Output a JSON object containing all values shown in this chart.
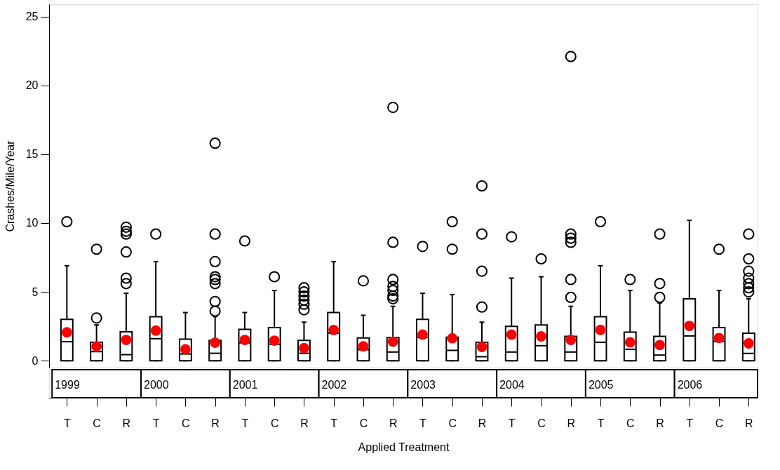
{
  "chart_data": {
    "type": "box",
    "ylabel": "Crashes/Mile/Year",
    "xlabel": "Applied Treatment",
    "categories": [
      "T",
      "C",
      "R",
      "T",
      "C",
      "R",
      "T",
      "C",
      "R",
      "T",
      "C",
      "R",
      "T",
      "C",
      "R",
      "T",
      "C",
      "R",
      "T",
      "C",
      "R",
      "T",
      "C",
      "R"
    ],
    "annotations": [
      "1999",
      "2000",
      "2001",
      "2002",
      "2003",
      "2004",
      "2005",
      "2006"
    ],
    "ylim": [
      -0.5,
      25.9
    ],
    "yticks": [
      0,
      5,
      10,
      15,
      20,
      25
    ],
    "grid": false,
    "series": [
      {
        "color": "#000000",
        "boxes": [
          {
            "low": 0,
            "q1": 0,
            "median": 1.38,
            "q3": 3.0,
            "high": 6.9,
            "mean": 2.06,
            "outliers": [
              10.1
            ]
          },
          {
            "low": 0,
            "q1": 0,
            "median": 0.66,
            "q3": 1.34,
            "high": 2.6,
            "mean": 1.04,
            "outliers": [
              3.1,
              8.1
            ]
          },
          {
            "low": 0,
            "q1": 0,
            "median": 0.44,
            "q3": 2.1,
            "high": 4.9,
            "mean": 1.51,
            "outliers": [
              5.6,
              6.0,
              7.9,
              9.2,
              9.4,
              9.7
            ]
          },
          {
            "low": 0,
            "q1": 0,
            "median": 1.6,
            "q3": 3.2,
            "high": 7.2,
            "mean": 2.19,
            "outliers": [
              9.2
            ]
          },
          {
            "low": 0,
            "q1": 0,
            "median": 0.49,
            "q3": 1.56,
            "high": 3.5,
            "mean": 0.83
          },
          {
            "low": 0,
            "q1": 0,
            "median": 0.54,
            "q3": 1.48,
            "high": 3.2,
            "mean": 1.31,
            "outliers": [
              3.6,
              4.3,
              5.6,
              5.9,
              6.1,
              7.2,
              9.2,
              15.8
            ]
          },
          {
            "low": 0,
            "q1": 0,
            "median": 1.3,
            "q3": 2.28,
            "high": 3.5,
            "mean": 1.51,
            "outliers": [
              8.7
            ]
          },
          {
            "low": 0,
            "q1": 0,
            "median": 1.2,
            "q3": 2.4,
            "high": 5.1,
            "mean": 1.46,
            "outliers": [
              6.1
            ]
          },
          {
            "low": 0,
            "q1": 0,
            "median": 0.54,
            "q3": 1.48,
            "high": 2.8,
            "mean": 0.92,
            "outliers": [
              3.7,
              4.1,
              4.4,
              4.7,
              5.0,
              5.3
            ]
          },
          {
            "low": 0,
            "q1": 0,
            "median": 2.0,
            "q3": 3.5,
            "high": 7.2,
            "mean": 2.23
          },
          {
            "low": 0,
            "q1": 0,
            "median": 0.8,
            "q3": 1.65,
            "high": 3.3,
            "mean": 1.04,
            "outliers": [
              5.8
            ]
          },
          {
            "low": 0,
            "q1": 0,
            "median": 0.63,
            "q3": 1.68,
            "high": 3.95,
            "mean": 1.38,
            "outliers": [
              4.5,
              4.7,
              5.1,
              5.4,
              5.9,
              8.6,
              18.4
            ]
          },
          {
            "low": 0,
            "q1": 0,
            "median": 1.7,
            "q3": 3.0,
            "high": 4.9,
            "mean": 1.9,
            "outliers": [
              8.3
            ]
          },
          {
            "low": 0,
            "q1": 0,
            "median": 0.75,
            "q3": 1.7,
            "high": 4.8,
            "mean": 1.63,
            "outliers": [
              8.1,
              10.1
            ]
          },
          {
            "low": 0,
            "q1": 0,
            "median": 0.29,
            "q3": 1.34,
            "high": 2.8,
            "mean": 1.0,
            "outliers": [
              3.9,
              6.5,
              9.2,
              12.7
            ]
          },
          {
            "low": 0,
            "q1": 0,
            "median": 0.63,
            "q3": 2.5,
            "high": 6.0,
            "mean": 1.9,
            "outliers": [
              9.0
            ]
          },
          {
            "low": 0,
            "q1": 0,
            "median": 1.09,
            "q3": 2.6,
            "high": 6.1,
            "mean": 1.77,
            "outliers": [
              7.4
            ]
          },
          {
            "low": 0,
            "q1": 0,
            "median": 0.63,
            "q3": 1.77,
            "high": 3.95,
            "mean": 1.51,
            "outliers": [
              4.6,
              5.9,
              8.6,
              8.9,
              9.2,
              22.1
            ]
          },
          {
            "low": 0,
            "q1": 0,
            "median": 1.34,
            "q3": 3.2,
            "high": 6.9,
            "mean": 2.24,
            "outliers": [
              10.1
            ]
          },
          {
            "low": 0,
            "q1": 0,
            "median": 0.83,
            "q3": 2.07,
            "high": 5.1,
            "mean": 1.34,
            "outliers": [
              5.9
            ]
          },
          {
            "low": 0,
            "q1": 0,
            "median": 0.41,
            "q3": 1.77,
            "high": 4.2,
            "mean": 1.14,
            "outliers": [
              4.6,
              5.6,
              9.2
            ]
          },
          {
            "low": 0,
            "q1": 0,
            "median": 1.8,
            "q3": 4.5,
            "high": 10.2,
            "mean": 2.53
          },
          {
            "low": 0,
            "q1": 0,
            "median": 1.4,
            "q3": 2.4,
            "high": 5.1,
            "mean": 1.65,
            "outliers": [
              8.1
            ]
          },
          {
            "low": 0,
            "q1": 0,
            "median": 0.53,
            "q3": 2.0,
            "high": 4.5,
            "mean": 1.26,
            "outliers": [
              5.0,
              5.3,
              5.6,
              6.0,
              6.5,
              7.4,
              9.2
            ]
          }
        ]
      }
    ]
  }
}
